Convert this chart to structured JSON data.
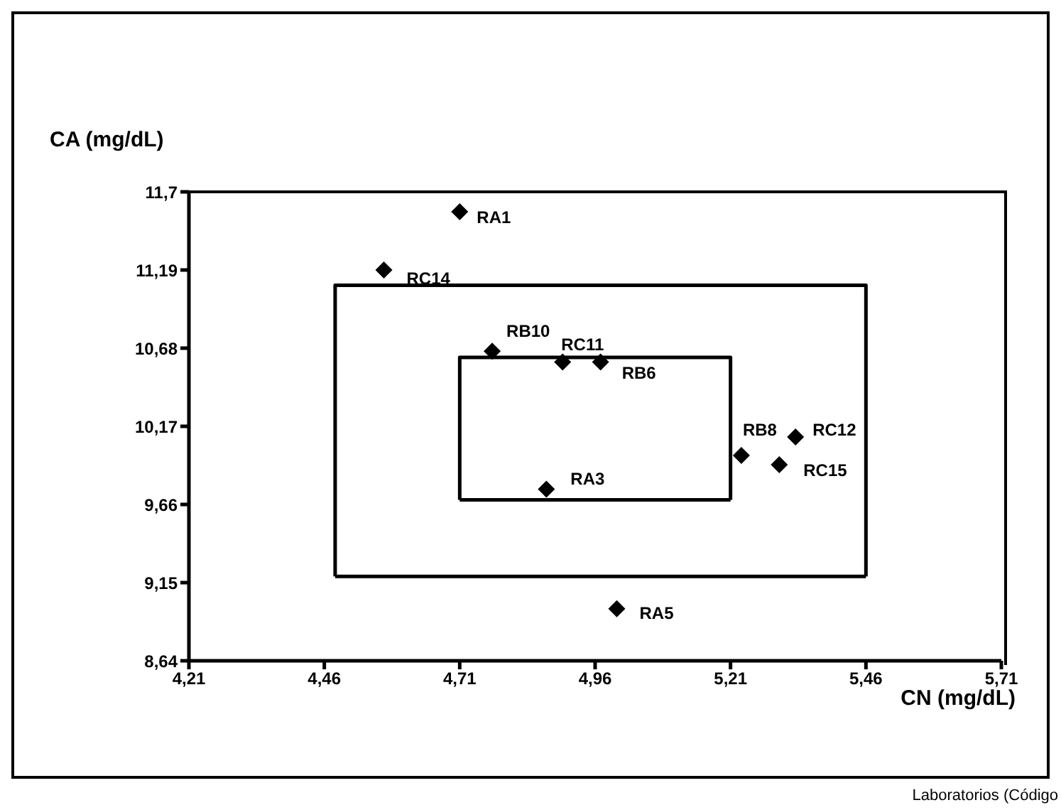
{
  "chart_data": {
    "type": "scatter",
    "xlabel": "CN (mg/dL)",
    "ylabel": "CA (mg/dL)",
    "xlim": [
      4.21,
      5.71
    ],
    "ylim": [
      8.64,
      11.7
    ],
    "xticks": [
      {
        "value": 4.21,
        "label": "4,21"
      },
      {
        "value": 4.46,
        "label": "4,46"
      },
      {
        "value": 4.71,
        "label": "4,71"
      },
      {
        "value": 4.96,
        "label": "4,96"
      },
      {
        "value": 5.21,
        "label": "5,21"
      },
      {
        "value": 5.46,
        "label": "5,46"
      },
      {
        "value": 5.71,
        "label": "5,71"
      }
    ],
    "yticks": [
      {
        "value": 8.64,
        "label": "8,64"
      },
      {
        "value": 9.15,
        "label": "9,15"
      },
      {
        "value": 9.66,
        "label": "9,66"
      },
      {
        "value": 10.17,
        "label": "10,17"
      },
      {
        "value": 10.68,
        "label": "10,68"
      },
      {
        "value": 11.19,
        "label": "11,19"
      },
      {
        "value": 11.7,
        "label": "11,7"
      }
    ],
    "legend": false,
    "marker": "diamond",
    "series": [
      {
        "type": "line",
        "marker": "none",
        "color": "#000000",
        "x": [
          4.48,
          4.48,
          5.46,
          5.46
        ],
        "values": [
          9.19,
          11.09,
          11.09,
          9.19
        ]
      },
      {
        "type": "line",
        "marker": "none",
        "color": "#000000",
        "x": [
          4.48,
          5.46
        ],
        "values": [
          9.19,
          9.19
        ]
      },
      {
        "type": "line",
        "marker": "none",
        "color": "#000000",
        "x": [
          4.71,
          4.71,
          5.21,
          5.21
        ],
        "values": [
          9.69,
          10.62,
          10.62,
          9.69
        ]
      },
      {
        "type": "line",
        "marker": "none",
        "color": "#000000",
        "x": [
          4.71,
          5.21
        ],
        "values": [
          9.69,
          9.69
        ]
      },
      {
        "name": "RA1",
        "color": "#000000",
        "x": [
          4.71
        ],
        "values": [
          11.57
        ]
      },
      {
        "name": "RC14",
        "color": "#000000",
        "x": [
          4.57
        ],
        "values": [
          11.19
        ]
      },
      {
        "name": "RB10",
        "color": "#000000",
        "x": [
          4.77
        ],
        "values": [
          10.66
        ]
      },
      {
        "name": "RC11",
        "color": "#000000",
        "x": [
          4.9
        ],
        "values": [
          10.59
        ]
      },
      {
        "name": "RB6",
        "color": "#000000",
        "x": [
          4.97
        ],
        "values": [
          10.59
        ]
      },
      {
        "name": "RB8",
        "color": "#000000",
        "x": [
          5.23
        ],
        "values": [
          9.98
        ]
      },
      {
        "name": "RC12",
        "color": "#000000",
        "x": [
          5.33
        ],
        "values": [
          10.1
        ]
      },
      {
        "name": "RC15",
        "color": "#000000",
        "x": [
          5.3
        ],
        "values": [
          9.92
        ]
      },
      {
        "name": "RA3",
        "color": "#000000",
        "x": [
          4.87
        ],
        "values": [
          9.76
        ]
      },
      {
        "name": "RA5",
        "color": "#000000",
        "x": [
          5.0
        ],
        "values": [
          8.98
        ]
      }
    ],
    "annotations": [
      "Laboratorios (Código"
    ]
  }
}
